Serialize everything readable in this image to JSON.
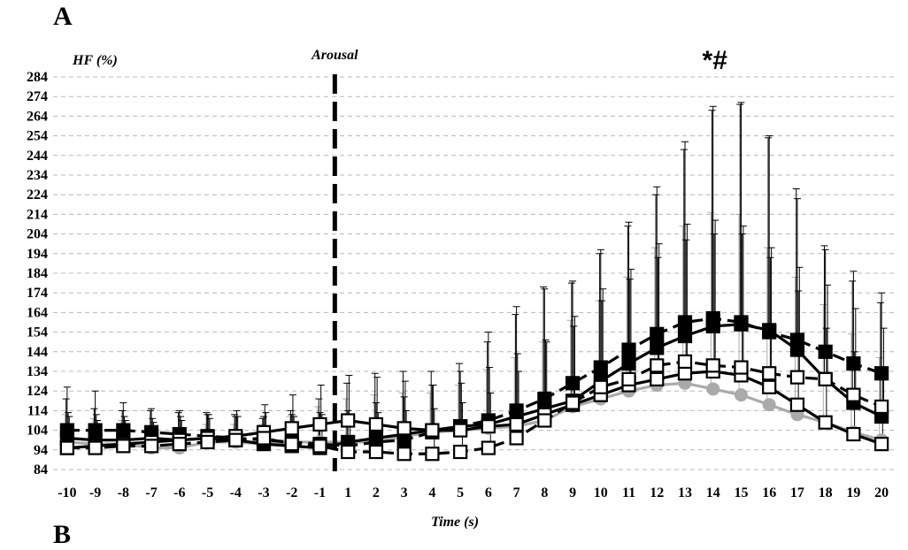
{
  "panel_label": "A",
  "panel_label_next": "B",
  "chart_data": {
    "type": "line",
    "ylabel": "HF (%)",
    "xlabel": "Time (s)",
    "annotation_event": "Arousal",
    "event_x": -0.5,
    "significance": "*#",
    "significance_x": 14,
    "ylim": [
      84,
      284
    ],
    "yticks": [
      84,
      94,
      104,
      114,
      124,
      134,
      144,
      154,
      164,
      174,
      184,
      194,
      204,
      214,
      224,
      234,
      244,
      254,
      264,
      274,
      284
    ],
    "x": [
      -10,
      -9,
      -8,
      -7,
      -6,
      -5,
      -4,
      -3,
      -2,
      -1,
      1,
      2,
      3,
      4,
      5,
      6,
      7,
      8,
      9,
      10,
      11,
      12,
      13,
      14,
      15,
      16,
      17,
      18,
      19,
      20
    ],
    "grid": true,
    "series": [
      {
        "style": {
          "color": "#aaaaaa",
          "marker": "circle",
          "fill": "#aaaaaa",
          "dash": "solid"
        },
        "values": [
          98,
          97,
          97,
          95,
          95,
          98,
          98,
          97,
          98,
          98,
          98,
          98,
          101,
          103,
          104,
          105,
          106,
          109,
          116,
          120,
          124,
          127,
          128,
          125,
          122,
          117,
          112,
          108,
          103,
          99
        ],
        "errors": [
          14,
          13,
          12,
          10,
          10,
          9,
          9,
          10,
          13,
          18,
          22,
          24,
          22,
          20,
          23,
          30,
          35,
          40,
          44,
          50,
          58,
          70,
          80,
          90,
          92,
          80,
          70,
          60,
          50,
          42
        ]
      },
      {
        "style": {
          "color": "#000000",
          "marker": "square",
          "fill": "#000000",
          "dash": "solid"
        },
        "values": [
          100,
          99,
          99,
          100,
          99,
          100,
          99,
          97,
          96,
          95,
          98,
          100,
          102,
          104,
          106,
          107,
          111,
          115,
          119,
          129,
          138,
          146,
          152,
          157,
          158,
          155,
          145,
          130,
          118,
          111
        ],
        "errors": [
          20,
          16,
          15,
          14,
          14,
          13,
          13,
          13,
          18,
          25,
          30,
          33,
          32,
          30,
          32,
          42,
          52,
          62,
          60,
          65,
          70,
          78,
          95,
          110,
          112,
          98,
          82,
          68,
          62,
          58
        ]
      },
      {
        "style": {
          "color": "#000000",
          "marker": "square",
          "fill": "#000000",
          "dash": "dashed"
        },
        "values": [
          104,
          104,
          104,
          103,
          102,
          101,
          100,
          99,
          98,
          97,
          96,
          98,
          99,
          103,
          106,
          109,
          114,
          120,
          128,
          136,
          145,
          153,
          159,
          161,
          159,
          154,
          150,
          144,
          138,
          133
        ],
        "errors": [
          22,
          20,
          14,
          12,
          12,
          11,
          11,
          12,
          14,
          16,
          18,
          20,
          22,
          24,
          28,
          45,
          53,
          56,
          52,
          60,
          65,
          75,
          92,
          108,
          112,
          100,
          72,
          52,
          47,
          41
        ]
      },
      {
        "style": {
          "color": "#000000",
          "marker": "square",
          "fill": "#ffffff",
          "dash": "solid"
        },
        "values": [
          95,
          96,
          97,
          98,
          99,
          100,
          101,
          103,
          105,
          107,
          109,
          107,
          105,
          104,
          104,
          106,
          107,
          112,
          117,
          122,
          127,
          130,
          133,
          134,
          132,
          126,
          117,
          108,
          102,
          97
        ],
        "errors": [
          18,
          16,
          14,
          12,
          12,
          12,
          13,
          14,
          17,
          20,
          23,
          24,
          24,
          23,
          24,
          30,
          36,
          38,
          40,
          48,
          54,
          62,
          68,
          70,
          72,
          66,
          58,
          48,
          42,
          36
        ]
      },
      {
        "style": {
          "color": "#000000",
          "marker": "square",
          "fill": "#ffffff",
          "dash": "dashed"
        },
        "values": [
          95,
          95,
          96,
          96,
          97,
          98,
          99,
          100,
          97,
          96,
          93,
          93,
          92,
          92,
          93,
          95,
          100,
          109,
          118,
          126,
          130,
          137,
          139,
          137,
          136,
          133,
          131,
          130,
          122,
          116
        ],
        "errors": [
          16,
          14,
          13,
          12,
          12,
          12,
          12,
          13,
          14,
          16,
          18,
          20,
          22,
          23,
          25,
          28,
          34,
          40,
          44,
          50,
          56,
          62,
          70,
          74,
          72,
          64,
          56,
          48,
          44,
          40
        ]
      }
    ]
  }
}
